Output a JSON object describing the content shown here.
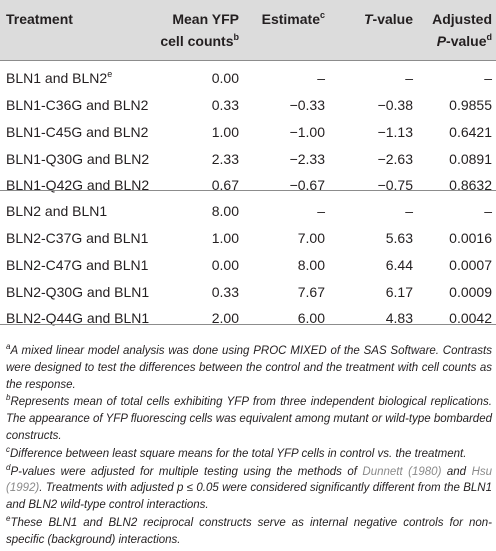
{
  "headers": {
    "treatment": "Treatment",
    "mean_line1": "Mean YFP",
    "mean_line2": "cell counts",
    "mean_sup": "b",
    "estimate": "Estimate",
    "estimate_sup": "c",
    "tvalue_t": "T",
    "tvalue_rest": "-value",
    "adjusted_line1": "Adjusted",
    "adjusted_p": "P",
    "adjusted_rest": "-value",
    "adjusted_sup": "d"
  },
  "rows": [
    {
      "treatment": "BLN1 and BLN2",
      "sup": "e",
      "mean": "0.00",
      "estimate": "–",
      "t": "–",
      "p": "–"
    },
    {
      "treatment": "BLN1-C36G and BLN2",
      "sup": "",
      "mean": "0.33",
      "estimate": "−0.33",
      "t": "−0.38",
      "p": "0.9855"
    },
    {
      "treatment": "BLN1-C45G and BLN2",
      "sup": "",
      "mean": "1.00",
      "estimate": "−1.00",
      "t": "−1.13",
      "p": "0.6421"
    },
    {
      "treatment": "BLN1-Q30G and BLN2",
      "sup": "",
      "mean": "2.33",
      "estimate": "−2.33",
      "t": "−2.63",
      "p": "0.0891"
    },
    {
      "treatment": "BLN1-Q42G and BLN2",
      "sup": "",
      "mean": "0.67",
      "estimate": "−0.67",
      "t": "−0.75",
      "p": "0.8632"
    },
    {
      "treatment": "BLN2 and BLN1",
      "sup": "",
      "mean": "8.00",
      "estimate": "–",
      "t": "–",
      "p": "–"
    },
    {
      "treatment": "BLN2-C37G and BLN1",
      "sup": "",
      "mean": "1.00",
      "estimate": "7.00",
      "t": "5.63",
      "p": "0.0016"
    },
    {
      "treatment": "BLN2-C47G and BLN1",
      "sup": "",
      "mean": "0.00",
      "estimate": "8.00",
      "t": "6.44",
      "p": "0.0007"
    },
    {
      "treatment": "BLN2-Q30G and BLN1",
      "sup": "",
      "mean": "0.33",
      "estimate": "7.67",
      "t": "6.17",
      "p": "0.0009"
    },
    {
      "treatment": "BLN2-Q44G and BLN1",
      "sup": "",
      "mean": "2.00",
      "estimate": "6.00",
      "t": "4.83",
      "p": "0.0042"
    }
  ],
  "footnotes": {
    "a_mark": "a",
    "a_text": "A mixed linear model analysis was done using PROC MIXED of the SAS Software. Contrasts were designed to test the differences between the control and the treatment with cell counts as the response.",
    "b_mark": "b",
    "b_text": "Represents mean of total cells exhibiting YFP from three independent biological replications. The appearance of YFP fluorescing cells was equivalent among mutant or wild-type bombarded constructs.",
    "c_mark": "c",
    "c_text": "Difference between least square means for the total YFP cells in control vs. the treatment.",
    "d_mark": "d",
    "d_part1": "P-values were adjusted for multiple testing using the methods of ",
    "d_link1": "Dunnett (1980)",
    "d_part2": " and ",
    "d_link2": "Hsu (1992)",
    "d_part3": ". Treatments with adjusted p ≤ 0.05 were considered significantly different from the BLN1 and BLN2 wild-type control interactions.",
    "e_mark": "e",
    "e_text": "These BLN1 and BLN2 reciprocal constructs serve as internal negative controls for non-specific (background) interactions."
  }
}
